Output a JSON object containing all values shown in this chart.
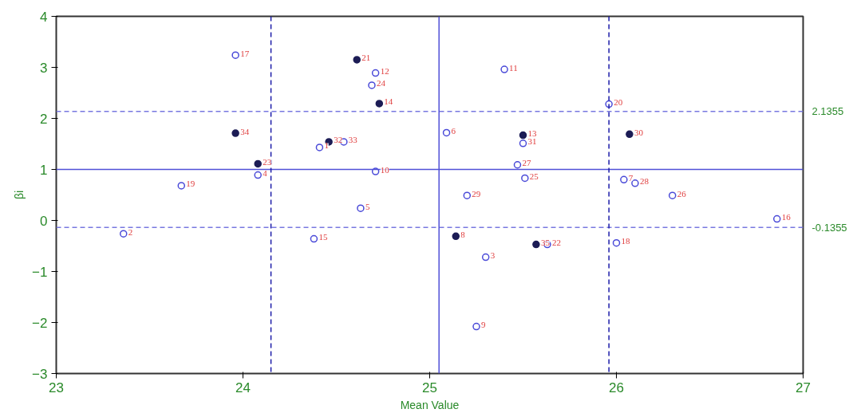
{
  "chart_data": {
    "type": "scatter",
    "xlabel": "Mean Value",
    "ylabel": "βi",
    "xlim": [
      23,
      27
    ],
    "ylim": [
      -3,
      4
    ],
    "xticks": [
      23,
      24,
      25,
      26,
      27
    ],
    "yticks": [
      -3,
      -2,
      -1,
      0,
      1,
      2,
      3,
      4
    ],
    "grid": false,
    "marker": "circle",
    "series": [
      {
        "color": "#4a4ad8",
        "x": [
          23.96,
          24.71,
          24.69,
          25.4,
          25.96,
          25.09,
          24.41,
          24.54,
          25.5,
          25.47,
          24.08,
          24.71,
          23.67,
          25.51,
          26.04,
          26.1,
          26.3,
          25.2,
          24.63,
          26.86,
          23.36,
          24.38,
          26.0,
          25.63,
          25.3,
          25.25
        ],
        "values": [
          3.24,
          2.89,
          2.65,
          2.96,
          2.28,
          1.72,
          1.43,
          1.54,
          1.51,
          1.09,
          0.89,
          0.96,
          0.68,
          0.83,
          0.8,
          0.73,
          0.49,
          0.49,
          0.24,
          0.03,
          -0.26,
          -0.36,
          -0.44,
          -0.47,
          -0.72,
          -2.08
        ]
      },
      {
        "color": "#1c1c55",
        "x": [
          24.61,
          24.73,
          23.96,
          26.07,
          25.5,
          24.46,
          24.08,
          25.14,
          25.57
        ],
        "values": [
          3.15,
          2.29,
          1.71,
          1.69,
          1.67,
          1.54,
          1.11,
          -0.31,
          -0.47
        ]
      }
    ],
    "annotations": [
      {
        "text": "17",
        "x": 23.96,
        "y": 3.24
      },
      {
        "text": "12",
        "x": 24.71,
        "y": 2.89
      },
      {
        "text": "24",
        "x": 24.69,
        "y": 2.65
      },
      {
        "text": "11",
        "x": 25.4,
        "y": 2.96
      },
      {
        "text": "20",
        "x": 25.96,
        "y": 2.28
      },
      {
        "text": "6",
        "x": 25.09,
        "y": 1.72
      },
      {
        "text": "1",
        "x": 24.41,
        "y": 1.43
      },
      {
        "text": "33",
        "x": 24.54,
        "y": 1.54
      },
      {
        "text": "31",
        "x": 25.5,
        "y": 1.51
      },
      {
        "text": "27",
        "x": 25.47,
        "y": 1.09
      },
      {
        "text": "4",
        "x": 24.08,
        "y": 0.89
      },
      {
        "text": "10",
        "x": 24.71,
        "y": 0.96
      },
      {
        "text": "19",
        "x": 23.67,
        "y": 0.68
      },
      {
        "text": "25",
        "x": 25.51,
        "y": 0.83
      },
      {
        "text": "7",
        "x": 26.04,
        "y": 0.8
      },
      {
        "text": "28",
        "x": 26.1,
        "y": 0.73
      },
      {
        "text": "26",
        "x": 26.3,
        "y": 0.49
      },
      {
        "text": "29",
        "x": 25.2,
        "y": 0.49
      },
      {
        "text": "5",
        "x": 24.63,
        "y": 0.24
      },
      {
        "text": "16",
        "x": 26.86,
        "y": 0.03
      },
      {
        "text": "2",
        "x": 23.36,
        "y": -0.26
      },
      {
        "text": "15",
        "x": 24.38,
        "y": -0.36
      },
      {
        "text": "18",
        "x": 26.0,
        "y": -0.44
      },
      {
        "text": "22",
        "x": 25.63,
        "y": -0.47
      },
      {
        "text": "3",
        "x": 25.3,
        "y": -0.72
      },
      {
        "text": "9",
        "x": 25.25,
        "y": -2.08
      },
      {
        "text": "21",
        "x": 24.61,
        "y": 3.15
      },
      {
        "text": "14",
        "x": 24.73,
        "y": 2.29
      },
      {
        "text": "34",
        "x": 23.96,
        "y": 1.71
      },
      {
        "text": "30",
        "x": 26.07,
        "y": 1.69
      },
      {
        "text": "13",
        "x": 25.5,
        "y": 1.67
      },
      {
        "text": "32",
        "x": 24.46,
        "y": 1.54
      },
      {
        "text": "23",
        "x": 24.08,
        "y": 1.11
      },
      {
        "text": "8",
        "x": 25.14,
        "y": -0.31
      },
      {
        "text": "35",
        "x": 25.57,
        "y": -0.47
      }
    ],
    "ref_lines": [
      {
        "axis": "y",
        "value": 2.1355,
        "label": "2.1355",
        "color": "#7878e0",
        "line_style": "dashed"
      },
      {
        "axis": "y",
        "value": 1.0,
        "color": "#5050d8",
        "line_style": "solid"
      },
      {
        "axis": "y",
        "value": -0.1355,
        "label": "-0.1355",
        "color": "#7878e0",
        "line_style": "dashed"
      },
      {
        "axis": "x",
        "value": 24.15,
        "color": "#1a1aa8",
        "line_style": "dashed"
      },
      {
        "axis": "x",
        "value": 25.05,
        "color": "#5050d8",
        "line_style": "solid"
      },
      {
        "axis": "x",
        "value": 25.96,
        "color": "#1a1aa8",
        "line_style": "dashed"
      }
    ]
  }
}
